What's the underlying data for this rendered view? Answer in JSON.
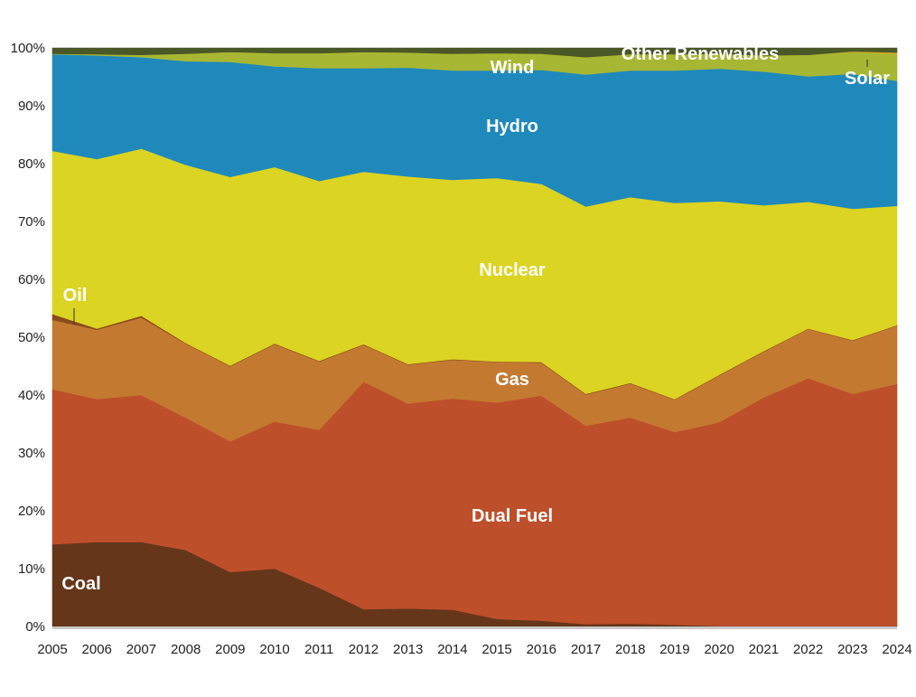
{
  "chart_data": {
    "type": "area",
    "stacked": true,
    "normalized": true,
    "x": [
      "2005",
      "2006",
      "2007",
      "2008",
      "2009",
      "2010",
      "2011",
      "2012",
      "2013",
      "2014",
      "2015",
      "2016",
      "2017",
      "2018",
      "2019",
      "2020",
      "2021",
      "2022",
      "2023",
      "2024"
    ],
    "ylim": [
      0,
      100
    ],
    "yticks": [
      "0%",
      "10%",
      "20%",
      "30%",
      "40%",
      "50%",
      "60%",
      "70%",
      "80%",
      "90%",
      "100%"
    ],
    "grid": false,
    "legend": "none (series labeled directly on areas)",
    "series": [
      {
        "name": "Coal",
        "color": "#65361a",
        "values": [
          14.2,
          14.6,
          14.6,
          13.2,
          9.4,
          10.0,
          6.7,
          3.0,
          3.1,
          2.9,
          1.3,
          1.0,
          0.4,
          0.5,
          0.3,
          0.1,
          0.1,
          0.1,
          0.1,
          0.1
        ]
      },
      {
        "name": "Dual Fuel",
        "color": "#bd4f2a",
        "values": [
          26.8,
          24.7,
          25.4,
          22.9,
          22.6,
          25.4,
          27.3,
          39.3,
          35.4,
          36.5,
          37.4,
          38.9,
          34.3,
          35.6,
          33.3,
          35.2,
          39.5,
          42.8,
          40.1,
          41.8
        ]
      },
      {
        "name": "Gas",
        "color": "#c47931",
        "values": [
          12.0,
          12.0,
          13.4,
          12.8,
          13.0,
          13.4,
          11.8,
          6.4,
          6.7,
          6.7,
          7.0,
          5.7,
          5.4,
          5.9,
          5.6,
          8.1,
          7.9,
          8.5,
          9.2,
          10.1
        ]
      },
      {
        "name": "Oil",
        "color": "#8b4a1c",
        "values": [
          1.0,
          0.2,
          0.3,
          0.1,
          0.1,
          0.1,
          0.1,
          0.1,
          0.1,
          0.1,
          0.1,
          0.1,
          0.1,
          0.1,
          0.1,
          0.1,
          0.1,
          0.1,
          0.1,
          0.1
        ]
      },
      {
        "name": "Nuclear",
        "color": "#dbd422",
        "values": [
          28.2,
          29.3,
          28.9,
          30.8,
          32.6,
          30.5,
          31.1,
          29.8,
          32.4,
          31.0,
          31.7,
          30.8,
          32.4,
          32.1,
          33.9,
          30.0,
          25.2,
          21.9,
          22.7,
          20.6
        ]
      },
      {
        "name": "Hydro",
        "color": "#1f89bc",
        "values": [
          16.7,
          17.9,
          15.8,
          17.9,
          19.9,
          17.4,
          19.5,
          17.9,
          18.8,
          18.9,
          18.6,
          19.7,
          22.8,
          21.9,
          22.9,
          22.9,
          23.1,
          21.7,
          23.3,
          21.6
        ]
      },
      {
        "name": "Wind",
        "color": "#a7b733",
        "values": [
          0.1,
          0.2,
          0.4,
          1.3,
          1.7,
          2.3,
          2.6,
          2.8,
          2.6,
          2.9,
          3.0,
          2.8,
          3.0,
          2.8,
          2.8,
          2.6,
          2.8,
          3.7,
          3.8,
          4.6
        ]
      },
      {
        "name": "Solar",
        "color": "#d8a92a",
        "values": [
          0.0,
          0.0,
          0.0,
          0.0,
          0.0,
          0.0,
          0.0,
          0.0,
          0.0,
          0.0,
          0.0,
          0.0,
          0.0,
          0.0,
          0.0,
          0.0,
          0.0,
          0.0,
          0.1,
          0.3
        ]
      },
      {
        "name": "Other Renewables",
        "color": "#4a5726",
        "values": [
          1.0,
          1.1,
          1.2,
          1.0,
          0.7,
          0.9,
          0.9,
          0.7,
          0.8,
          1.0,
          0.9,
          1.0,
          1.6,
          1.1,
          1.1,
          1.0,
          1.3,
          1.2,
          0.6,
          0.8
        ]
      }
    ],
    "annotations": [
      {
        "label": "Coal",
        "series": "Coal"
      },
      {
        "label": "Dual Fuel",
        "series": "Dual Fuel"
      },
      {
        "label": "Gas",
        "series": "Gas"
      },
      {
        "label": "Oil",
        "series": "Oil"
      },
      {
        "label": "Nuclear",
        "series": "Nuclear"
      },
      {
        "label": "Hydro",
        "series": "Hydro"
      },
      {
        "label": "Wind",
        "series": "Wind"
      },
      {
        "label": "Solar",
        "series": "Solar"
      },
      {
        "label": "Other Renewables",
        "series": "Other Renewables"
      }
    ]
  }
}
